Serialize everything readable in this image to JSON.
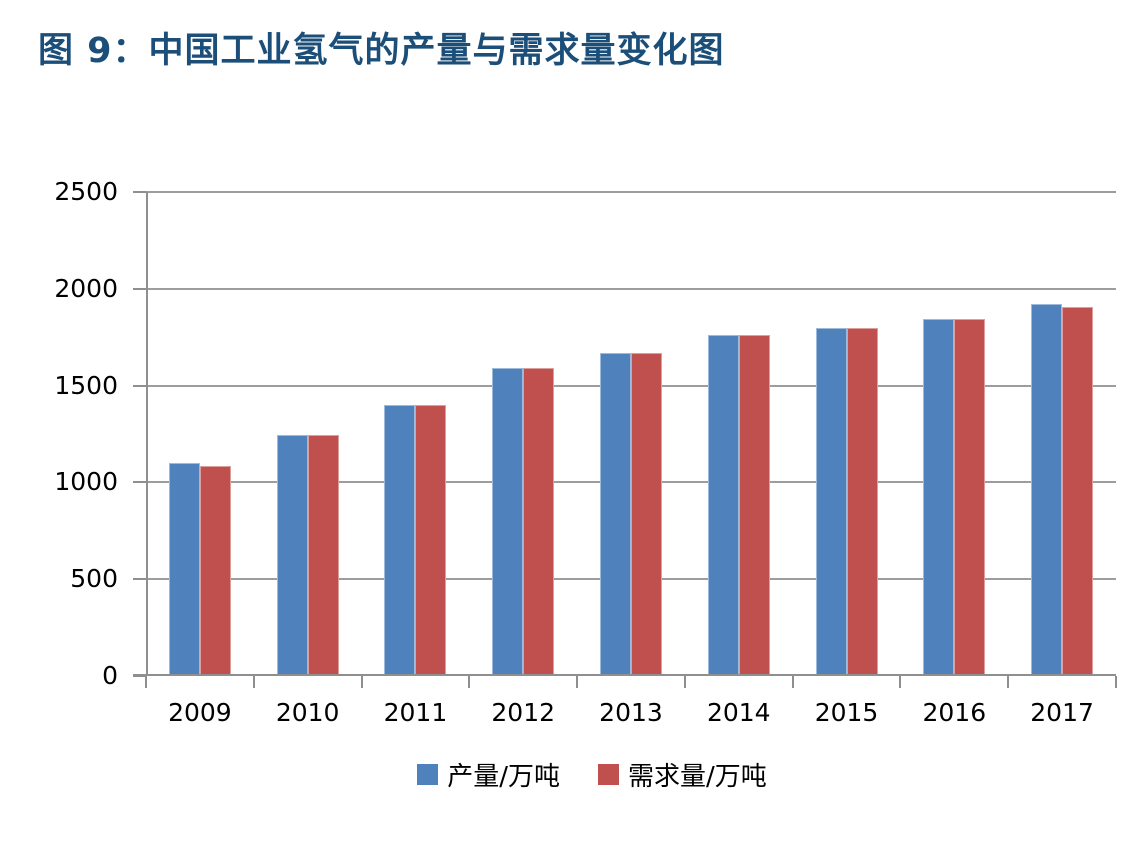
{
  "title": "图 9：中国工业氢气的产量与需求量变化图",
  "colors": {
    "title": "#1B4E79",
    "axis": "#8F8F8F",
    "gridline": "#9D9D9D",
    "label": "#000000",
    "background": "#FFFFFF"
  },
  "chart_data": {
    "type": "bar",
    "title": "图 9：中国工业氢气的产量与需求量变化图",
    "categories": [
      "2009",
      "2010",
      "2011",
      "2012",
      "2013",
      "2014",
      "2015",
      "2016",
      "2017"
    ],
    "series": [
      {
        "id": "production",
        "name": "产量/万吨",
        "color": "#4F81BD",
        "values": [
          1100,
          1245,
          1400,
          1590,
          1670,
          1760,
          1800,
          1845,
          1920
        ]
      },
      {
        "id": "demand",
        "name": "需求量/万吨",
        "color": "#C0504D",
        "values": [
          1085,
          1245,
          1400,
          1590,
          1670,
          1760,
          1800,
          1845,
          1905
        ]
      }
    ],
    "xlabel": "",
    "ylabel": "",
    "ylim": [
      0,
      2500
    ],
    "ytick_interval": 500,
    "yticks": [
      0,
      500,
      1000,
      1500,
      2000,
      2500
    ],
    "grid": true,
    "legend_position": "bottom"
  }
}
